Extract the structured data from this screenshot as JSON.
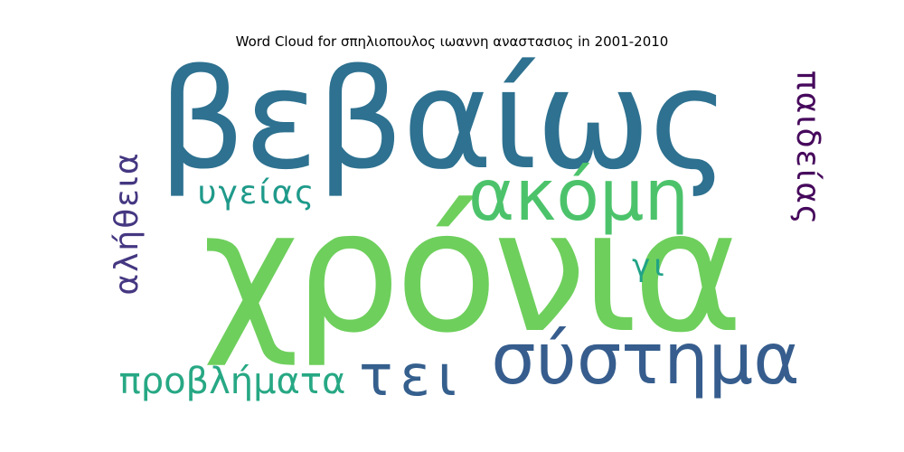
{
  "title": "Word Cloud for σπηλιοπουλος ιωαννη αναστασιος in 2001-2010",
  "words": [
    {
      "text": "χρόνια",
      "color": "#6ecf5c",
      "orientation": "horizontal"
    },
    {
      "text": "βεβαίως",
      "color": "#2e7190",
      "orientation": "horizontal"
    },
    {
      "text": "ακόμη",
      "color": "#4cc36b",
      "orientation": "horizontal"
    },
    {
      "text": "σύστημα",
      "color": "#365d8d",
      "orientation": "horizontal"
    },
    {
      "text": "τει",
      "color": "#355f8d",
      "orientation": "horizontal"
    },
    {
      "text": "προβλήματα",
      "color": "#27a884",
      "orientation": "horizontal"
    },
    {
      "text": "υγείας",
      "color": "#1f9a8a",
      "orientation": "horizontal"
    },
    {
      "text": "παιδείας",
      "color": "#46095c",
      "orientation": "vertical"
    },
    {
      "text": "αλήθεια",
      "color": "#453781",
      "orientation": "vertical"
    },
    {
      "text": "γι",
      "color": "#20a386",
      "orientation": "horizontal"
    }
  ]
}
